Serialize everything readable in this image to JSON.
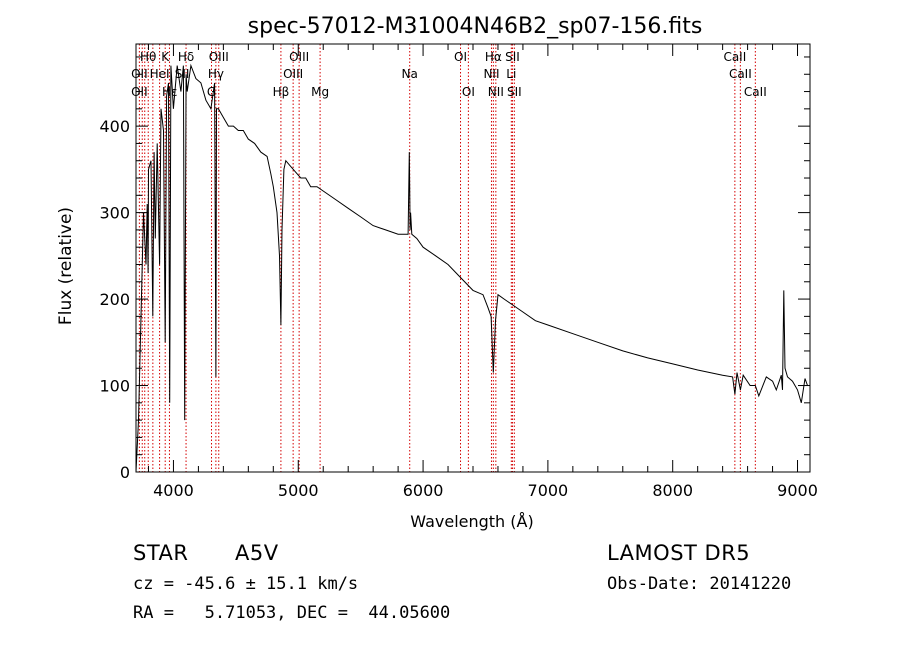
{
  "chart_data": {
    "type": "line",
    "title": "spec-57012-M31004N46B2_sp07-156.fits",
    "xlabel": "Wavelength (Å)",
    "ylabel": "Flux (relative)",
    "xlim": [
      3700,
      9100
    ],
    "ylim": [
      0,
      495
    ],
    "x_ticks": [
      4000,
      5000,
      6000,
      7000,
      8000,
      9000
    ],
    "y_ticks": [
      0,
      100,
      200,
      300,
      400
    ],
    "series": [
      {
        "x": [
          3700,
          3720,
          3740,
          3760,
          3780,
          3790,
          3797,
          3800,
          3820,
          3835,
          3845,
          3855,
          3870,
          3889,
          3900,
          3920,
          3934,
          3945,
          3960,
          3970,
          3980,
          4000,
          4030,
          4060,
          4080,
          4090,
          4101,
          4110,
          4140,
          4180,
          4220,
          4260,
          4300,
          4330,
          4340,
          4345,
          4360,
          4400,
          4440,
          4480,
          4520,
          4560,
          4600,
          4650,
          4700,
          4750,
          4780,
          4800,
          4830,
          4850,
          4861,
          4870,
          4885,
          4900,
          4930,
          4960,
          4990,
          5020,
          5060,
          5100,
          5150,
          5200,
          5300,
          5400,
          5500,
          5600,
          5700,
          5800,
          5880,
          5890,
          5893,
          5896,
          5900,
          5910,
          5950,
          6000,
          6100,
          6200,
          6300,
          6400,
          6480,
          6520,
          6545,
          6563,
          6580,
          6600,
          6650,
          6700,
          6800,
          6900,
          7000,
          7200,
          7400,
          7600,
          7800,
          8000,
          8200,
          8400,
          8480,
          8498,
          8515,
          8542,
          8565,
          8620,
          8662,
          8690,
          8750,
          8800,
          8830,
          8870,
          8880,
          8890,
          8900,
          8920,
          8960,
          9000,
          9030,
          9060,
          9080
        ],
        "y": [
          0,
          60,
          180,
          300,
          240,
          310,
          230,
          350,
          360,
          180,
          370,
          270,
          380,
          240,
          420,
          395,
          150,
          435,
          450,
          80,
          470,
          420,
          470,
          440,
          470,
          60,
          460,
          440,
          470,
          455,
          450,
          430,
          420,
          450,
          110,
          420,
          420,
          410,
          400,
          400,
          395,
          395,
          385,
          380,
          370,
          365,
          345,
          330,
          300,
          250,
          170,
          280,
          350,
          360,
          355,
          350,
          345,
          340,
          340,
          330,
          330,
          325,
          315,
          305,
          295,
          285,
          280,
          275,
          275,
          370,
          330,
          280,
          300,
          275,
          270,
          260,
          250,
          240,
          225,
          210,
          205,
          190,
          180,
          115,
          175,
          205,
          200,
          195,
          185,
          175,
          170,
          160,
          150,
          140,
          132,
          125,
          118,
          112,
          110,
          90,
          115,
          95,
          112,
          100,
          100,
          88,
          110,
          105,
          95,
          112,
          95,
          210,
          120,
          110,
          105,
          95,
          80,
          108,
          100
        ]
      }
    ],
    "lines_x": [
      3727,
      3750,
      3770,
      3798,
      3835,
      3889,
      3934,
      3968,
      4101,
      4305,
      4340,
      4363,
      4861,
      4959,
      5007,
      5175,
      5893,
      6300,
      6363,
      6548,
      6563,
      6583,
      6707,
      6716,
      6731,
      8498,
      8542,
      8662
    ],
    "line_labels": [
      {
        "text": "Hθ",
        "x": 3798,
        "row": 0
      },
      {
        "text": "K",
        "x": 3934,
        "row": 0
      },
      {
        "text": "Hδ",
        "x": 4101,
        "row": 0
      },
      {
        "text": "OIII",
        "x": 4363,
        "row": 0
      },
      {
        "text": "OIII",
        "x": 5007,
        "row": 0
      },
      {
        "text": "OI",
        "x": 6300,
        "row": 0
      },
      {
        "text": "Hα",
        "x": 6563,
        "row": 0
      },
      {
        "text": "SII",
        "x": 6716,
        "row": 0
      },
      {
        "text": "CaII",
        "x": 8498,
        "row": 0
      },
      {
        "text": "OII",
        "x": 3727,
        "row": 1
      },
      {
        "text": "HeI",
        "x": 3889,
        "row": 1
      },
      {
        "text": "SII",
        "x": 4069,
        "row": 1
      },
      {
        "text": "Hγ",
        "x": 4340,
        "row": 1
      },
      {
        "text": "OIII",
        "x": 4959,
        "row": 1
      },
      {
        "text": "Na",
        "x": 5893,
        "row": 1
      },
      {
        "text": "NII",
        "x": 6548,
        "row": 1
      },
      {
        "text": "Li",
        "x": 6707,
        "row": 1
      },
      {
        "text": "CaII",
        "x": 8542,
        "row": 1
      },
      {
        "text": "OII",
        "x": 3727,
        "row": 2
      },
      {
        "text": "Hε",
        "x": 3970,
        "row": 2
      },
      {
        "text": "G",
        "x": 4305,
        "row": 2
      },
      {
        "text": "Hβ",
        "x": 4861,
        "row": 2
      },
      {
        "text": "Mg",
        "x": 5175,
        "row": 2
      },
      {
        "text": "OI",
        "x": 6363,
        "row": 2
      },
      {
        "text": "NII",
        "x": 6583,
        "row": 2
      },
      {
        "text": "SII",
        "x": 6731,
        "row": 2
      },
      {
        "text": "CaII",
        "x": 8662,
        "row": 2
      }
    ],
    "line_color": "#d40000",
    "grid": false,
    "legend": "none"
  },
  "info": {
    "class": "STAR",
    "subclass": "A5V",
    "survey": "LAMOST DR5",
    "cz": "cz = -45.6 ± 15.1 km/s",
    "obsdate": "Obs-Date: 20141220",
    "radec": "RA =   5.71053, DEC =  44.05600"
  }
}
